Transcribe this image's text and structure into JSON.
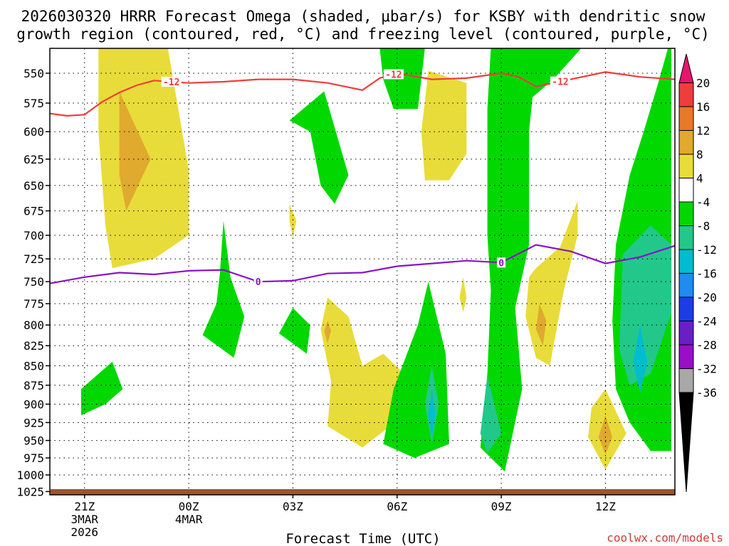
{
  "chart_data": {
    "type": "heatmap",
    "title_line1": "2026030320 HRRR Forecast Omega (shaded, μbar/s) for KSBY with dendritic snow",
    "title_line2": "growth region (contoured, red, °C) and freezing level (contoured, purple, °C)",
    "xlabel": "Forecast Time (UTC)",
    "credit": "coolwx.com/models",
    "x_range_hours": [
      -1,
      17
    ],
    "y_range_hpa": [
      1030,
      530
    ],
    "y_ticks": [
      "550",
      "575",
      "600",
      "625",
      "650",
      "675",
      "700",
      "725",
      "750",
      "775",
      "800",
      "825",
      "850",
      "875",
      "900",
      "925",
      "950",
      "975",
      "1000",
      "1025"
    ],
    "x_ticks": [
      {
        "hour": 0,
        "label": "21Z",
        "sub1": "3MAR",
        "sub2": "2026"
      },
      {
        "hour": 3,
        "label": "00Z",
        "sub1": "4MAR",
        "sub2": ""
      },
      {
        "hour": 6,
        "label": "03Z",
        "sub1": "",
        "sub2": ""
      },
      {
        "hour": 9,
        "label": "06Z",
        "sub1": "",
        "sub2": ""
      },
      {
        "hour": 12,
        "label": "09Z",
        "sub1": "",
        "sub2": ""
      },
      {
        "hour": 15,
        "label": "12Z",
        "sub1": "",
        "sub2": ""
      }
    ],
    "colorbar": {
      "labels": [
        "20",
        "16",
        "12",
        "8",
        "4",
        "-4",
        "-8",
        "-12",
        "-16",
        "-20",
        "-24",
        "-28",
        "-32",
        "-36"
      ],
      "colors": [
        "#e8146e",
        "#f03c3c",
        "#e8782a",
        "#e0aa2e",
        "#e8dc3a",
        "#ffffff",
        "#00d800",
        "#22c88a",
        "#00bcd0",
        "#1e8cf0",
        "#1e3ce6",
        "#6a1ec8",
        "#9a0ec8",
        "#a8a8a8",
        "#000000"
      ]
    },
    "omega_regions": [
      {
        "level": "4",
        "color": "#e8dc3a",
        "points": [
          [
            0.4,
            530
          ],
          [
            2.4,
            530
          ],
          [
            3.0,
            635
          ],
          [
            3.0,
            700
          ],
          [
            2.0,
            725
          ],
          [
            0.8,
            735
          ],
          [
            0.6,
            690
          ],
          [
            0.4,
            600
          ]
        ]
      },
      {
        "level": "8",
        "color": "#e0aa2e",
        "points": [
          [
            1.0,
            565
          ],
          [
            1.9,
            625
          ],
          [
            1.2,
            675
          ],
          [
            1.0,
            640
          ]
        ]
      },
      {
        "level": "4",
        "color": "#e8dc3a",
        "points": [
          [
            5.9,
            668
          ],
          [
            6.1,
            685
          ],
          [
            6.0,
            703
          ],
          [
            5.9,
            685
          ]
        ]
      },
      {
        "level": "4",
        "color": "#e8dc3a",
        "points": [
          [
            7.0,
            768
          ],
          [
            7.6,
            790
          ],
          [
            8.0,
            850
          ],
          [
            8.6,
            835
          ],
          [
            9.2,
            860
          ],
          [
            8.8,
            930
          ],
          [
            8.0,
            960
          ],
          [
            7.0,
            930
          ],
          [
            7.1,
            870
          ],
          [
            6.8,
            805
          ]
        ]
      },
      {
        "level": "8",
        "color": "#e0aa2e",
        "points": [
          [
            7.0,
            795
          ],
          [
            7.1,
            807
          ],
          [
            7.0,
            822
          ],
          [
            6.9,
            807
          ]
        ]
      },
      {
        "level": "4",
        "color": "#e8dc3a",
        "points": [
          [
            9.9,
            548
          ],
          [
            11.0,
            558
          ],
          [
            11.0,
            620
          ],
          [
            10.5,
            645
          ],
          [
            9.8,
            645
          ],
          [
            9.7,
            600
          ]
        ]
      },
      {
        "level": "4",
        "color": "#e8dc3a",
        "points": [
          [
            10.9,
            745
          ],
          [
            11.0,
            768
          ],
          [
            10.9,
            785
          ],
          [
            10.8,
            768
          ]
        ]
      },
      {
        "level": "4",
        "color": "#e8dc3a",
        "points": [
          [
            13.0,
            735
          ],
          [
            13.7,
            712
          ],
          [
            14.2,
            665
          ],
          [
            14.2,
            700
          ],
          [
            13.8,
            760
          ],
          [
            13.4,
            850
          ],
          [
            13.0,
            840
          ],
          [
            12.7,
            790
          ],
          [
            12.8,
            745
          ]
        ]
      },
      {
        "level": "8",
        "color": "#e0aa2e",
        "points": [
          [
            13.1,
            775
          ],
          [
            13.3,
            795
          ],
          [
            13.2,
            825
          ],
          [
            13.0,
            805
          ]
        ]
      },
      {
        "level": "4",
        "color": "#e8dc3a",
        "points": [
          [
            15.0,
            880
          ],
          [
            15.6,
            940
          ],
          [
            15.0,
            992
          ],
          [
            14.5,
            945
          ],
          [
            14.6,
            905
          ]
        ]
      },
      {
        "level": "8",
        "color": "#e0aa2e",
        "points": [
          [
            15.0,
            915
          ],
          [
            15.2,
            945
          ],
          [
            15.0,
            970
          ],
          [
            14.8,
            945
          ]
        ]
      },
      {
        "level": "-4",
        "color": "#00d800",
        "points": [
          [
            -0.1,
            880
          ],
          [
            0.8,
            845
          ],
          [
            1.1,
            880
          ],
          [
            0.6,
            900
          ],
          [
            -0.1,
            915
          ]
        ]
      },
      {
        "level": "-4",
        "color": "#00d800",
        "points": [
          [
            4.0,
            685
          ],
          [
            4.2,
            745
          ],
          [
            4.6,
            790
          ],
          [
            4.3,
            840
          ],
          [
            3.4,
            812
          ],
          [
            3.8,
            775
          ],
          [
            3.9,
            740
          ]
        ]
      },
      {
        "level": "-4",
        "color": "#00d800",
        "points": [
          [
            5.9,
            590
          ],
          [
            6.9,
            565
          ],
          [
            7.6,
            640
          ],
          [
            7.2,
            668
          ],
          [
            6.8,
            650
          ],
          [
            6.5,
            600
          ]
        ]
      },
      {
        "level": "-4",
        "color": "#00d800",
        "points": [
          [
            6.0,
            780
          ],
          [
            6.5,
            800
          ],
          [
            6.4,
            835
          ],
          [
            5.6,
            810
          ]
        ]
      },
      {
        "level": "-4",
        "color": "#00d800",
        "points": [
          [
            8.5,
            530
          ],
          [
            9.8,
            530
          ],
          [
            9.6,
            580
          ],
          [
            8.9,
            580
          ],
          [
            8.6,
            555
          ]
        ]
      },
      {
        "level": "-4",
        "color": "#00d800",
        "points": [
          [
            9.9,
            750
          ],
          [
            10.4,
            835
          ],
          [
            10.5,
            955
          ],
          [
            9.5,
            975
          ],
          [
            8.6,
            955
          ],
          [
            8.9,
            880
          ],
          [
            9.6,
            800
          ]
        ]
      },
      {
        "level": "-8",
        "color": "#22c88a",
        "points": [
          [
            10.0,
            850
          ],
          [
            10.2,
            900
          ],
          [
            10.0,
            955
          ],
          [
            9.8,
            900
          ]
        ]
      },
      {
        "level": "-12",
        "color": "#00bcd0",
        "points": [
          [
            10.0,
            880
          ],
          [
            10.1,
            915
          ],
          [
            10.0,
            945
          ],
          [
            9.9,
            915
          ]
        ]
      },
      {
        "level": "-4",
        "color": "#00d800",
        "points": [
          [
            11.7,
            530
          ],
          [
            14.3,
            530
          ],
          [
            13.5,
            555
          ],
          [
            12.9,
            570
          ],
          [
            12.8,
            600
          ],
          [
            12.8,
            710
          ],
          [
            12.4,
            780
          ],
          [
            12.6,
            880
          ],
          [
            12.1,
            995
          ],
          [
            11.4,
            960
          ],
          [
            11.6,
            860
          ],
          [
            11.7,
            760
          ],
          [
            11.6,
            700
          ],
          [
            11.6,
            580
          ]
        ]
      },
      {
        "level": "-8",
        "color": "#22c88a",
        "points": [
          [
            11.6,
            862
          ],
          [
            12.0,
            940
          ],
          [
            11.6,
            968
          ],
          [
            11.4,
            940
          ]
        ]
      },
      {
        "level": "-4",
        "color": "#00d800",
        "points": [
          [
            15.2,
            795
          ],
          [
            15.3,
            710
          ],
          [
            15.7,
            640
          ],
          [
            16.1,
            600
          ],
          [
            16.5,
            560
          ],
          [
            16.8,
            530
          ],
          [
            16.9,
            530
          ],
          [
            16.9,
            965
          ],
          [
            16.3,
            965
          ],
          [
            15.7,
            925
          ],
          [
            15.3,
            880
          ]
        ]
      },
      {
        "level": "-8",
        "color": "#22c88a",
        "points": [
          [
            15.5,
            720
          ],
          [
            16.3,
            690
          ],
          [
            16.9,
            710
          ],
          [
            16.9,
            785
          ],
          [
            16.3,
            860
          ],
          [
            15.7,
            875
          ],
          [
            15.4,
            830
          ]
        ]
      },
      {
        "level": "-12",
        "color": "#00bcd0",
        "points": [
          [
            16.0,
            800
          ],
          [
            16.2,
            845
          ],
          [
            16.0,
            885
          ],
          [
            15.8,
            845
          ]
        ]
      }
    ],
    "contours": [
      {
        "name": "dendritic-minus12",
        "label": "-12",
        "color": "#f03c3c",
        "x": [
          -1,
          -0.5,
          0,
          0.5,
          1,
          1.5,
          2,
          3,
          4,
          5,
          6,
          7,
          8,
          8.5,
          9,
          10,
          11,
          12,
          12.5,
          13,
          14,
          15,
          16,
          17
        ],
        "y": [
          584,
          586,
          585,
          574,
          566,
          560,
          556,
          558,
          557,
          555,
          555,
          558,
          564,
          554,
          550,
          555,
          554,
          550,
          553,
          561,
          555,
          549,
          553,
          555
        ],
        "label_positions": [
          2.5,
          8.9,
          13.7
        ]
      },
      {
        "name": "freezing-level-0",
        "label": "0",
        "color": "#8a12c8",
        "x": [
          -1,
          0,
          1,
          2,
          3,
          4,
          5,
          6,
          7,
          8,
          9,
          10,
          11,
          12,
          13,
          14,
          15,
          16,
          17
        ],
        "y": [
          752,
          745,
          740,
          742,
          738,
          737,
          750,
          749,
          741,
          740,
          733,
          730,
          727,
          729,
          710,
          717,
          730,
          723,
          711
        ],
        "label_positions": [
          5,
          12
        ]
      }
    ]
  }
}
